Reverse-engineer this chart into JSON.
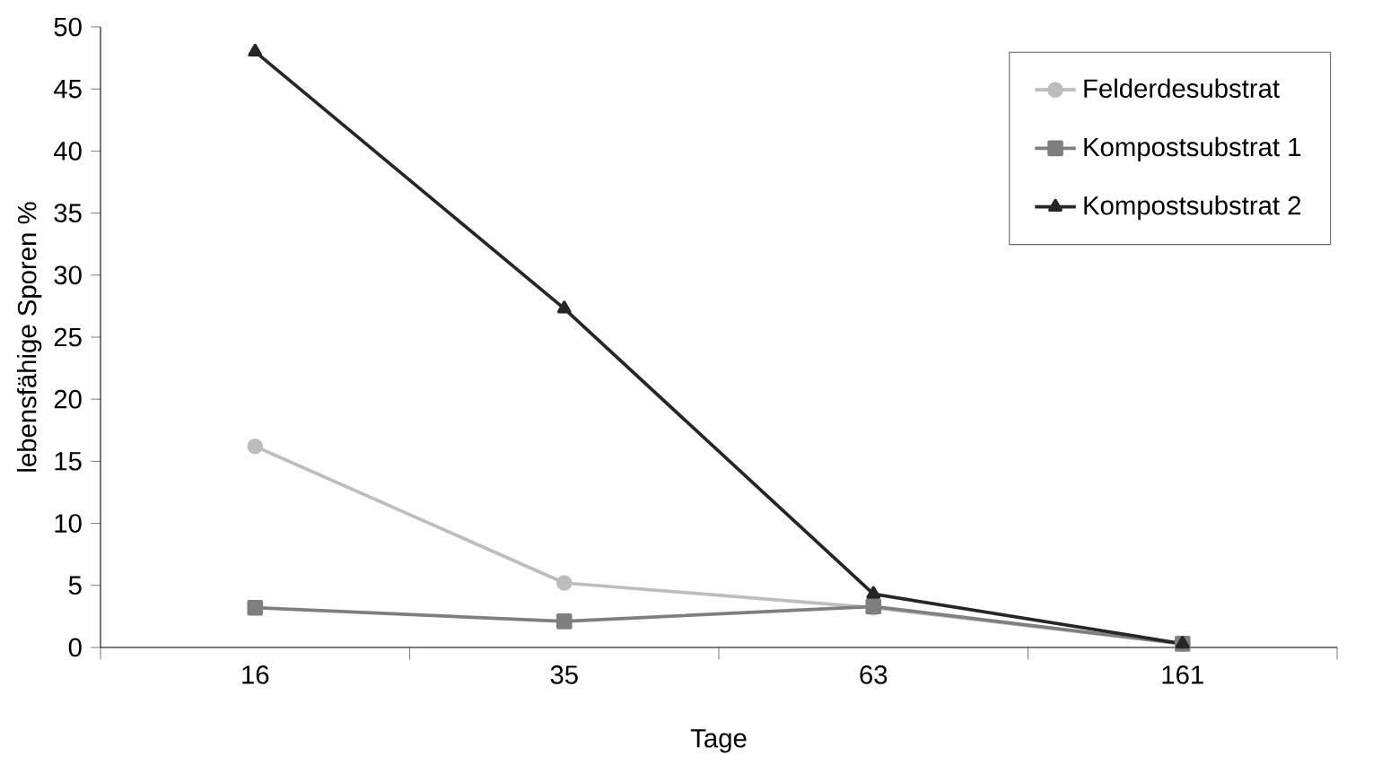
{
  "chart_data": {
    "type": "line",
    "xlabel": "Tage",
    "ylabel": "lebensfähige Sporen %",
    "categories": [
      "16",
      "35",
      "63",
      "161"
    ],
    "series": [
      {
        "name": "Felderdesubstrat",
        "color": "#bdbdbd",
        "marker": "circle",
        "values": [
          16.2,
          5.2,
          3.2,
          0.3
        ]
      },
      {
        "name": "Kompostsubstrat 1",
        "color": "#7f7f7f",
        "marker": "square",
        "values": [
          3.2,
          2.1,
          3.3,
          0.3
        ]
      },
      {
        "name": "Kompostsubstrat 2",
        "color": "#262626",
        "marker": "triangle",
        "values": [
          48,
          27.3,
          4.3,
          0.3
        ]
      }
    ],
    "ylim": [
      0,
      50
    ],
    "yticks": [
      0,
      5,
      10,
      15,
      20,
      25,
      30,
      35,
      40,
      45,
      50
    ],
    "grid": false,
    "legend": "top right",
    "line_style": "solid"
  }
}
